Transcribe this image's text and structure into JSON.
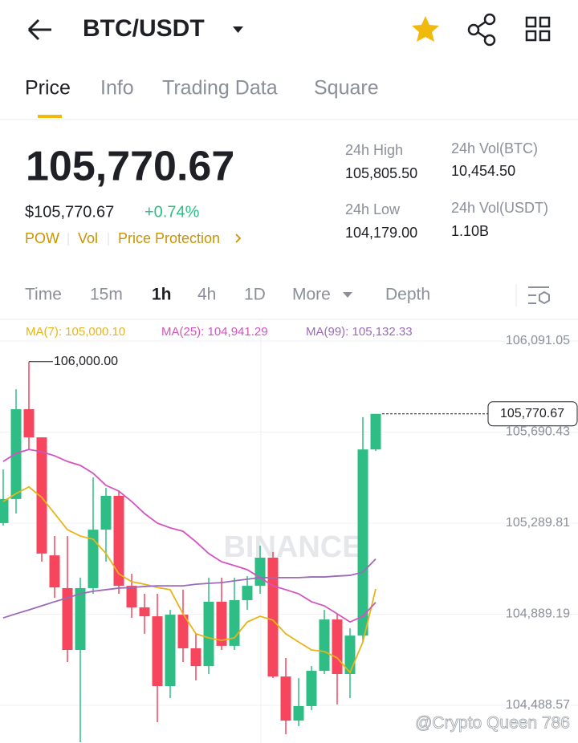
{
  "header": {
    "title": "BTC/USDT"
  },
  "tabs": [
    "Price",
    "Info",
    "Trading Data",
    "Square"
  ],
  "price": {
    "last": "105,770.67",
    "usd": "$105,770.67",
    "change": "+0.74%",
    "tags": [
      "POW",
      "Vol",
      "Price Protection"
    ]
  },
  "stats": [
    {
      "label": "24h High",
      "value": "105,805.50"
    },
    {
      "label": "24h Vol(BTC)",
      "value": "10,454.50"
    },
    {
      "label": "24h Low",
      "value": "104,179.00"
    },
    {
      "label": "24h Vol(USDT)",
      "value": "1.10B"
    }
  ],
  "intervals": [
    "Time",
    "15m",
    "1h",
    "4h",
    "1D",
    "More",
    "Depth"
  ],
  "watermark": "BINANCE",
  "credit": "@Crypto Queen 786",
  "chart_data": {
    "type": "candlestick",
    "up_color": "#2ebd85",
    "down_color": "#f6465d",
    "open": [
      105290,
      105396,
      105791,
      105667,
      105148,
      105004,
      104732,
      105004,
      105261,
      105410,
      105014,
      104919,
      104880,
      104573,
      104887,
      104739,
      104661,
      104944,
      104750,
      104951,
      105014,
      105138,
      104615,
      104421,
      104485,
      104640,
      104866,
      104626,
      104795,
      105614
    ],
    "high": [
      105526,
      105879,
      106000,
      105667,
      105233,
      105233,
      105050,
      105491,
      105445,
      105431,
      105067,
      104979,
      104979,
      104908,
      104997,
      104803,
      105050,
      105050,
      105050,
      105057,
      105191,
      105163,
      104697,
      104608,
      104661,
      104908,
      104891,
      104827,
      105756,
      105770
    ],
    "low": [
      105279,
      105332,
      105614,
      105120,
      104961,
      104679,
      104326,
      104979,
      105120,
      104979,
      104873,
      104803,
      104414,
      104520,
      104679,
      104598,
      104626,
      104732,
      104732,
      104908,
      104979,
      104608,
      104361,
      104397,
      104467,
      104626,
      104492,
      104520,
      104767,
      105607
    ],
    "close": [
      105396,
      105791,
      105667,
      105156,
      105007,
      104732,
      105004,
      105261,
      105410,
      105014,
      104919,
      104880,
      104573,
      104887,
      104739,
      104661,
      104944,
      104750,
      104951,
      105014,
      105138,
      104615,
      104421,
      104485,
      104640,
      104866,
      104626,
      104795,
      105614,
      105770.67
    ],
    "series": [
      {
        "label": "MA(7): 105,000.10",
        "color": "#e8b417",
        "values": [
          105385,
          105420,
          105449,
          105403,
          105332,
          105261,
          105233,
          105219,
          105156,
          105067,
          105032,
          105021,
          105007,
          104997,
          104891,
          104803,
          104785,
          104774,
          104785,
          104855,
          104880,
          104863,
          104803,
          104767,
          104732,
          104725,
          104697,
          104633,
          104767,
          105000.1
        ]
      },
      {
        "label": "MA(25): 104,941.29",
        "color": "#d453c0",
        "values": [
          105561,
          105597,
          105614,
          105604,
          105586,
          105561,
          105544,
          105509,
          105456,
          105431,
          105385,
          105332,
          105290,
          105269,
          105254,
          105208,
          105156,
          105120,
          105103,
          105085,
          105050,
          105014,
          104997,
          104979,
          104944,
          104926,
          104891,
          104855,
          104880,
          104941.29
        ]
      },
      {
        "label": "MA(99): 105,132.33",
        "color": "#9b6bb8",
        "values": [
          104873,
          104891,
          104908,
          104926,
          104944,
          104961,
          104979,
          104990,
          104997,
          105004,
          105007,
          105011,
          105014,
          105014,
          105014,
          105021,
          105025,
          105028,
          105036,
          105043,
          105050,
          105050,
          105050,
          105050,
          105053,
          105053,
          105057,
          105060,
          105074,
          105132.33
        ]
      }
    ],
    "ylim": [
      104322.5,
      106179.3
    ],
    "yticks": [
      {
        "value": 106091.05,
        "label": "106,091.05"
      },
      {
        "value": 105690.43,
        "label": "105,690.43"
      },
      {
        "value": 105289.81,
        "label": "105,289.81"
      },
      {
        "value": 104889.19,
        "label": "104,889.19"
      },
      {
        "value": 104488.57,
        "label": "104,488.57"
      }
    ],
    "grid": true,
    "high_annotation": {
      "value": 106000,
      "label": "106,000.00"
    },
    "last_price": {
      "value": 105770.67,
      "label": "105,770.67"
    }
  }
}
